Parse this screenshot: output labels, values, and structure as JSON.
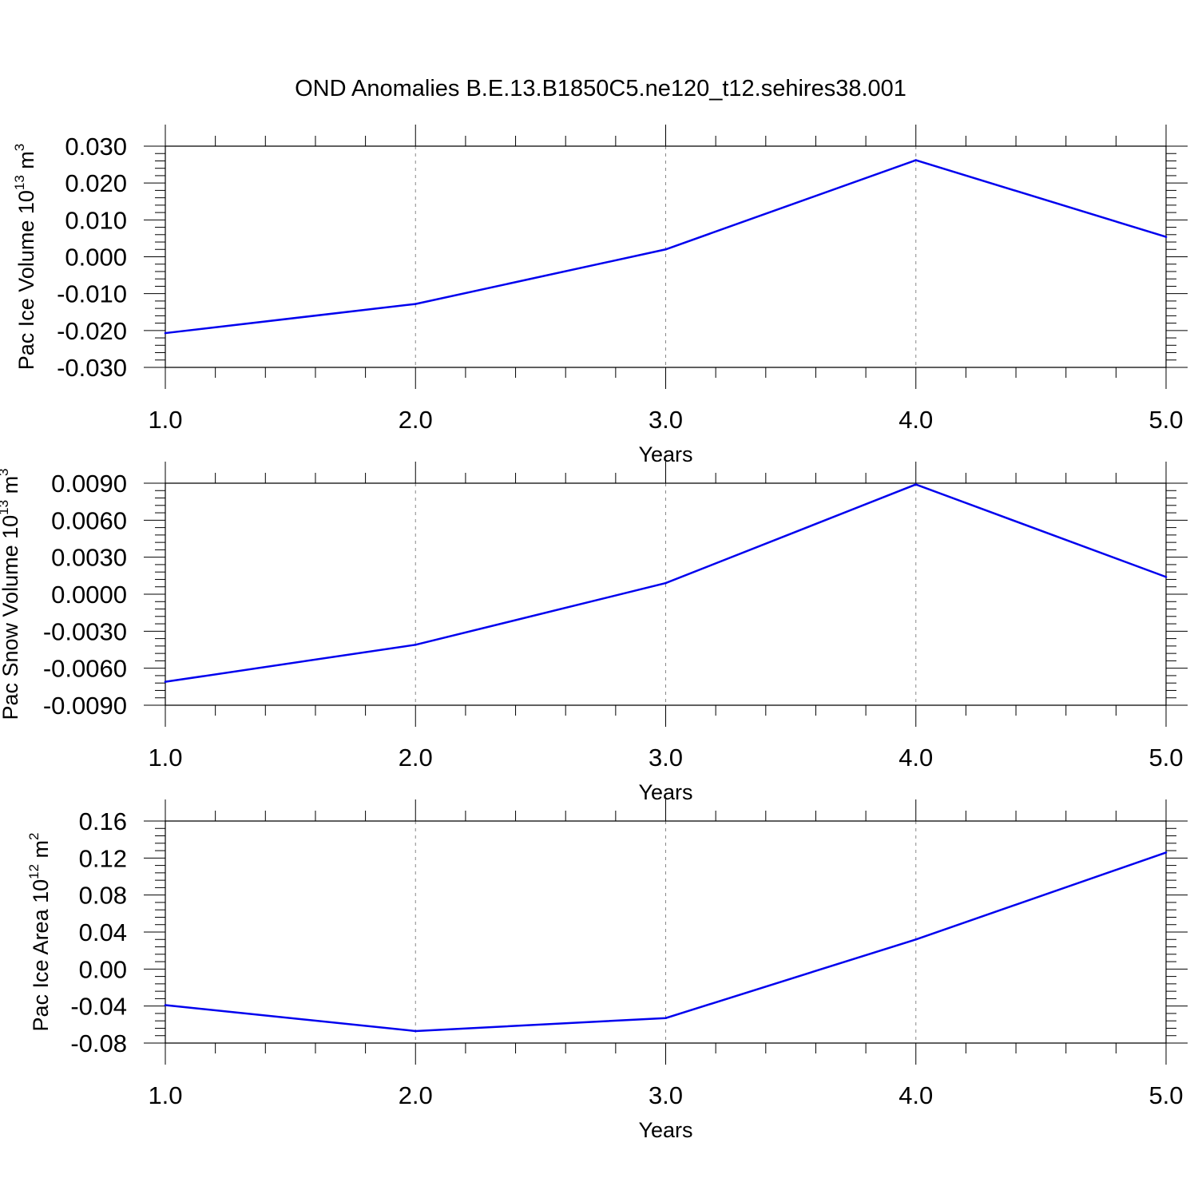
{
  "title": "OND Anomalies B.E.13.B1850C5.ne120_t12.sehires38.001",
  "colors": {
    "series": "#0000ee",
    "axis": "#000000",
    "grid": "#888888"
  },
  "chart_data": [
    {
      "type": "line",
      "ylabel": {
        "text": "Pac Ice Volume 10",
        "exp": "13",
        "unit": " m",
        "unit_exp": "3"
      },
      "xlabel": "Years",
      "xlim": [
        1.0,
        5.0
      ],
      "ylim": [
        -0.03,
        0.03
      ],
      "xticks": [
        "1.0",
        "2.0",
        "3.0",
        "4.0",
        "5.0"
      ],
      "yticks": [
        "0.030",
        "0.020",
        "0.010",
        "0.000",
        "-0.010",
        "-0.020",
        "-0.030"
      ],
      "x": [
        1,
        2,
        3,
        4,
        5
      ],
      "values": [
        -0.0207,
        -0.0128,
        0.002,
        0.0262,
        0.0054
      ],
      "grid": "dashed vertical at major x ticks"
    },
    {
      "type": "line",
      "ylabel": {
        "text": "Pac Snow Volume 10",
        "exp": "13",
        "unit": " m",
        "unit_exp": "3"
      },
      "xlabel": "Years",
      "xlim": [
        1.0,
        5.0
      ],
      "ylim": [
        -0.009,
        0.009
      ],
      "xticks": [
        "1.0",
        "2.0",
        "3.0",
        "4.0",
        "5.0"
      ],
      "yticks": [
        "0.0090",
        "0.0060",
        "0.0030",
        "0.0000",
        "-0.0030",
        "-0.0060",
        "-0.0090"
      ],
      "x": [
        1,
        2,
        3,
        4,
        5
      ],
      "values": [
        -0.0071,
        -0.0041,
        0.0009,
        0.0089,
        0.0014
      ],
      "grid": "dashed vertical at major x ticks"
    },
    {
      "type": "line",
      "ylabel": {
        "text": "Pac Ice Area 10",
        "exp": "12",
        "unit": " m",
        "unit_exp": "2"
      },
      "xlabel": "Years",
      "xlim": [
        1.0,
        5.0
      ],
      "ylim": [
        -0.08,
        0.16
      ],
      "xticks": [
        "1.0",
        "2.0",
        "3.0",
        "4.0",
        "5.0"
      ],
      "yticks": [
        "0.16",
        "0.12",
        "0.08",
        "0.04",
        "0.00",
        "-0.04",
        "-0.08"
      ],
      "x": [
        1,
        2,
        3,
        4,
        5
      ],
      "values": [
        -0.039,
        -0.067,
        -0.053,
        0.032,
        0.126
      ],
      "grid": "dashed vertical at major x ticks"
    }
  ]
}
